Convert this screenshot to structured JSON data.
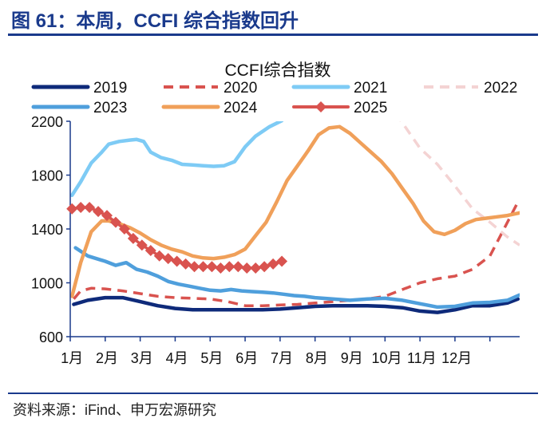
{
  "figure": {
    "title": "图 61：本周，CCFI 综合指数回升",
    "source": "资料来源：iFind、申万宏源研究"
  },
  "chart_data": {
    "type": "line",
    "title": "CCFI综合指数",
    "xlabel": "",
    "ylabel": "",
    "ylim": [
      600,
      2200
    ],
    "xlim": [
      0,
      12.85
    ],
    "yticks": [
      600,
      1000,
      1400,
      1800,
      2200
    ],
    "categories": [
      "1月",
      "2月",
      "3月",
      "4月",
      "5月",
      "6月",
      "7月",
      "8月",
      "9月",
      "10月",
      "11月",
      "12月"
    ],
    "legend_position": "top",
    "series": [
      {
        "name": "2019",
        "color": "#0e2a7a",
        "style": "solid",
        "width": 4.5,
        "x": [
          0.1,
          0.5,
          1,
          1.5,
          2,
          2.5,
          3,
          3.5,
          4,
          4.5,
          5,
          5.5,
          6,
          6.5,
          7,
          7.5,
          8,
          8.5,
          9,
          9.5,
          10,
          10.5,
          11,
          11.5,
          12,
          12.5,
          12.8
        ],
        "y": [
          840,
          870,
          890,
          890,
          860,
          830,
          810,
          800,
          800,
          800,
          800,
          800,
          805,
          815,
          825,
          830,
          830,
          830,
          825,
          815,
          790,
          780,
          800,
          830,
          830,
          850,
          880
        ]
      },
      {
        "name": "2020",
        "color": "#d9534f",
        "style": "dashed",
        "width": 3.5,
        "x": [
          0.1,
          0.3,
          0.6,
          1,
          1.5,
          2,
          2.5,
          3,
          3.5,
          4,
          4.5,
          5,
          5.5,
          6,
          6.5,
          7,
          7.5,
          8,
          8.5,
          9,
          9.5,
          10,
          10.5,
          11,
          11.5,
          12,
          12.5,
          12.8
        ],
        "y": [
          880,
          940,
          960,
          955,
          940,
          920,
          900,
          890,
          885,
          880,
          860,
          830,
          830,
          835,
          840,
          850,
          860,
          870,
          880,
          900,
          950,
          1000,
          1030,
          1050,
          1100,
          1200,
          1450,
          1600
        ]
      },
      {
        "name": "2021",
        "color": "#7ecbf5",
        "style": "solid",
        "width": 4.5,
        "x": [
          0.05,
          0.3,
          0.6,
          0.9,
          1.1,
          1.4,
          1.7,
          1.9,
          2.1,
          2.3,
          2.6,
          2.9,
          3.2,
          3.5,
          3.8,
          4.1,
          4.4,
          4.7,
          5,
          5.3,
          5.7,
          6.05
        ],
        "y": [
          1650,
          1750,
          1890,
          1970,
          2030,
          2050,
          2060,
          2065,
          2050,
          1970,
          1930,
          1910,
          1880,
          1875,
          1870,
          1865,
          1870,
          1900,
          2010,
          2090,
          2160,
          2205
        ]
      },
      {
        "name": "2022",
        "color": "#f4d3d3",
        "style": "dashed",
        "width": 3.5,
        "x": [
          9.3,
          9.6,
          10,
          10.5,
          11,
          11.5,
          12,
          12.5,
          12.85
        ],
        "y": [
          2260,
          2150,
          2000,
          1880,
          1720,
          1550,
          1450,
          1340,
          1280
        ]
      },
      {
        "name": "2023",
        "color": "#4f9fdc",
        "style": "solid",
        "width": 4.5,
        "x": [
          0.15,
          0.5,
          1,
          1.3,
          1.6,
          1.9,
          2.2,
          2.5,
          2.8,
          3.1,
          3.4,
          3.7,
          4,
          4.3,
          4.6,
          4.9,
          5.2,
          5.5,
          5.8,
          6.1,
          6.4,
          6.7,
          7,
          7.5,
          8,
          8.5,
          9,
          9.5,
          10,
          10.5,
          11,
          11.5,
          12,
          12.5,
          12.85
        ],
        "y": [
          1260,
          1200,
          1160,
          1130,
          1150,
          1100,
          1080,
          1050,
          1010,
          990,
          975,
          960,
          945,
          940,
          950,
          940,
          935,
          930,
          925,
          915,
          905,
          900,
          890,
          880,
          870,
          880,
          885,
          870,
          845,
          820,
          825,
          850,
          855,
          870,
          910
        ]
      },
      {
        "name": "2024",
        "color": "#f0a05a",
        "style": "solid",
        "width": 4.5,
        "x": [
          0.05,
          0.3,
          0.6,
          0.9,
          1.1,
          1.4,
          1.7,
          2,
          2.3,
          2.6,
          2.9,
          3.2,
          3.5,
          3.8,
          4.1,
          4.4,
          4.7,
          5,
          5.3,
          5.6,
          5.9,
          6.2,
          6.5,
          6.8,
          7.1,
          7.4,
          7.7,
          8,
          8.3,
          8.6,
          8.9,
          9.2,
          9.5,
          9.8,
          10.1,
          10.4,
          10.7,
          11,
          11.3,
          11.6,
          11.9,
          12.2,
          12.5,
          12.85
        ],
        "y": [
          900,
          1150,
          1380,
          1460,
          1460,
          1440,
          1410,
          1370,
          1320,
          1280,
          1250,
          1230,
          1200,
          1185,
          1180,
          1190,
          1210,
          1250,
          1350,
          1450,
          1600,
          1760,
          1870,
          1980,
          2100,
          2150,
          2160,
          2110,
          2040,
          1970,
          1900,
          1810,
          1700,
          1590,
          1460,
          1380,
          1360,
          1390,
          1440,
          1470,
          1480,
          1490,
          1500,
          1520
        ]
      },
      {
        "name": "2025",
        "color": "#d9534f",
        "style": "marker",
        "width": 3.5,
        "x": [
          0.05,
          0.3,
          0.55,
          0.8,
          1.05,
          1.3,
          1.55,
          1.8,
          2.05,
          2.3,
          2.55,
          2.8,
          3.05,
          3.3,
          3.55,
          3.8,
          4.05,
          4.3,
          4.55,
          4.8,
          5.05,
          5.3,
          5.55,
          5.8,
          6.05
        ],
        "y": [
          1550,
          1560,
          1560,
          1530,
          1500,
          1450,
          1400,
          1330,
          1280,
          1240,
          1200,
          1180,
          1160,
          1140,
          1120,
          1120,
          1120,
          1110,
          1120,
          1120,
          1110,
          1110,
          1120,
          1140,
          1160
        ]
      }
    ]
  }
}
